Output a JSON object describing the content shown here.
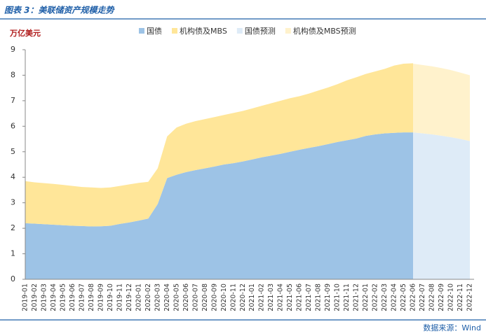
{
  "chart_data": {
    "type": "area",
    "title": "图表 3：美联储资产规模走势",
    "y_label": "万亿美元",
    "source": "数据来源：Wind",
    "categories": [
      "2019-01",
      "2019-02",
      "2019-03",
      "2019-04",
      "2019-05",
      "2019-06",
      "2019-07",
      "2019-08",
      "2019-09",
      "2019-10",
      "2019-11",
      "2019-12",
      "2020-01",
      "2020-02",
      "2020-03",
      "2020-04",
      "2020-05",
      "2020-06",
      "2020-07",
      "2020-08",
      "2020-09",
      "2020-10",
      "2020-11",
      "2020-12",
      "2021-01",
      "2021-02",
      "2021-03",
      "2021-04",
      "2021-05",
      "2021-06",
      "2021-07",
      "2021-08",
      "2021-09",
      "2021-10",
      "2021-11",
      "2021-12",
      "2022-01",
      "2022-02",
      "2022-03",
      "2022-04",
      "2022-05",
      "2022-06",
      "2022-07",
      "2022-08",
      "2022-09",
      "2022-10",
      "2022-11",
      "2022-12"
    ],
    "series": [
      {
        "name": "国债",
        "color": "#9dc3e6",
        "values": [
          2.2,
          2.18,
          2.16,
          2.14,
          2.12,
          2.1,
          2.09,
          2.07,
          2.08,
          2.1,
          2.17,
          2.23,
          2.3,
          2.38,
          2.95,
          3.97,
          4.1,
          4.2,
          4.28,
          4.35,
          4.42,
          4.5,
          4.55,
          4.62,
          4.7,
          4.78,
          4.85,
          4.92,
          5.0,
          5.08,
          5.15,
          5.22,
          5.3,
          5.38,
          5.45,
          5.52,
          5.62,
          5.68,
          5.72,
          5.74,
          5.76,
          5.76,
          null,
          null,
          null,
          null,
          null,
          null
        ]
      },
      {
        "name": "机构债及MBS",
        "color": "#ffe699",
        "values": [
          1.65,
          1.62,
          1.61,
          1.6,
          1.58,
          1.56,
          1.53,
          1.53,
          1.5,
          1.5,
          1.49,
          1.49,
          1.48,
          1.44,
          1.4,
          1.63,
          1.85,
          1.9,
          1.92,
          1.93,
          1.94,
          1.94,
          1.97,
          1.98,
          2.0,
          2.02,
          2.05,
          2.08,
          2.1,
          2.1,
          2.13,
          2.18,
          2.22,
          2.27,
          2.35,
          2.4,
          2.43,
          2.47,
          2.53,
          2.64,
          2.69,
          2.71,
          null,
          null,
          null,
          null,
          null,
          null
        ]
      },
      {
        "name": "国债预测",
        "color": "#deebf7",
        "values": [
          null,
          null,
          null,
          null,
          null,
          null,
          null,
          null,
          null,
          null,
          null,
          null,
          null,
          null,
          null,
          null,
          null,
          null,
          null,
          null,
          null,
          null,
          null,
          null,
          null,
          null,
          null,
          null,
          null,
          null,
          null,
          null,
          null,
          null,
          null,
          null,
          null,
          null,
          null,
          null,
          null,
          5.76,
          5.72,
          5.68,
          5.63,
          5.57,
          5.5,
          5.42
        ]
      },
      {
        "name": "机构债及MBS预测",
        "color": "#fff2cc",
        "values": [
          null,
          null,
          null,
          null,
          null,
          null,
          null,
          null,
          null,
          null,
          null,
          null,
          null,
          null,
          null,
          null,
          null,
          null,
          null,
          null,
          null,
          null,
          null,
          null,
          null,
          null,
          null,
          null,
          null,
          null,
          null,
          null,
          null,
          null,
          null,
          null,
          null,
          null,
          null,
          null,
          null,
          2.69,
          2.68,
          2.67,
          2.65,
          2.63,
          2.6,
          2.58
        ]
      }
    ],
    "ylim": [
      0,
      9
    ],
    "yticks": [
      0,
      1,
      2,
      3,
      4,
      5,
      6,
      7,
      8,
      9
    ]
  }
}
